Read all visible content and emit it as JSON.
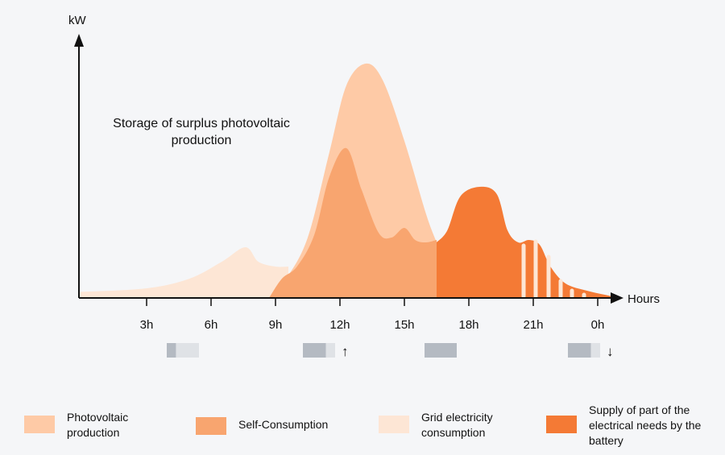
{
  "chart_data": {
    "type": "area",
    "ylabel": "kW",
    "xlabel": "Hours",
    "x_tick_labels": [
      "3h",
      "6h",
      "9h",
      "12h",
      "15h",
      "18h",
      "21h",
      "0h"
    ],
    "annotation": "Storage of surplus photovoltaic production",
    "series": [
      {
        "name": "Grid electricity consumption",
        "color": "#fde6d5",
        "points": [
          [
            -0.1,
            0.25
          ],
          [
            3,
            0.4
          ],
          [
            5,
            0.8
          ],
          [
            6.5,
            1.5
          ],
          [
            7.6,
            2.1
          ],
          [
            8.2,
            1.5
          ],
          [
            9,
            1.3
          ],
          [
            9.6,
            1.3
          ]
        ]
      },
      {
        "name": "Photovoltaic production",
        "color": "#fecaa6",
        "points": [
          [
            8.7,
            0
          ],
          [
            9.5,
            0.8
          ],
          [
            10.5,
            2.5
          ],
          [
            11.5,
            6
          ],
          [
            12.3,
            8.8
          ],
          [
            13.2,
            9.7
          ],
          [
            14,
            9
          ],
          [
            15,
            6.5
          ],
          [
            16,
            3.5
          ],
          [
            16.5,
            2.3
          ]
        ]
      },
      {
        "name": "Self-Consumption",
        "color": "#f8a56f",
        "points": [
          [
            8.7,
            0
          ],
          [
            9.3,
            0.8
          ],
          [
            10,
            1.3
          ],
          [
            10.8,
            2.6
          ],
          [
            11.5,
            5
          ],
          [
            12.3,
            6.2
          ],
          [
            13,
            4.5
          ],
          [
            13.8,
            2.7
          ],
          [
            14.4,
            2.5
          ],
          [
            15,
            2.9
          ],
          [
            15.5,
            2.4
          ],
          [
            16,
            2.3
          ],
          [
            16.5,
            2.4
          ]
        ]
      },
      {
        "name": "Supply of part of the electrical needs by the battery",
        "color": "#f47a35",
        "points": [
          [
            16.5,
            2.3
          ],
          [
            17,
            2.8
          ],
          [
            17.6,
            4.2
          ],
          [
            18.5,
            4.6
          ],
          [
            19.3,
            4.3
          ],
          [
            19.8,
            2.8
          ],
          [
            20.3,
            2.3
          ],
          [
            20.8,
            2.4
          ],
          [
            21.3,
            2.2
          ],
          [
            21.8,
            1.3
          ],
          [
            22.5,
            0.6
          ],
          [
            23.5,
            0.3
          ],
          [
            24.5,
            0.1
          ],
          [
            25,
            0
          ]
        ]
      }
    ],
    "battery_levels": [
      {
        "hour": 1.5,
        "level": 0.25,
        "arrow": ""
      },
      {
        "hour": 10.5,
        "level": 0.75,
        "arrow": "↑"
      },
      {
        "hour": 16.5,
        "level": 1.0,
        "arrow": ""
      },
      {
        "hour": 22.5,
        "level": 0.75,
        "arrow": "↓"
      }
    ],
    "grid": false
  },
  "legend": [
    {
      "label": "Photovoltaic production",
      "color": "#fecaa6"
    },
    {
      "label": "Self-Consumption",
      "color": "#f8a56f"
    },
    {
      "label": "Grid electricity consumption",
      "color": "#fde6d5"
    },
    {
      "label": "Supply of part of the electrical needs by the battery",
      "color": "#f47a35"
    }
  ]
}
